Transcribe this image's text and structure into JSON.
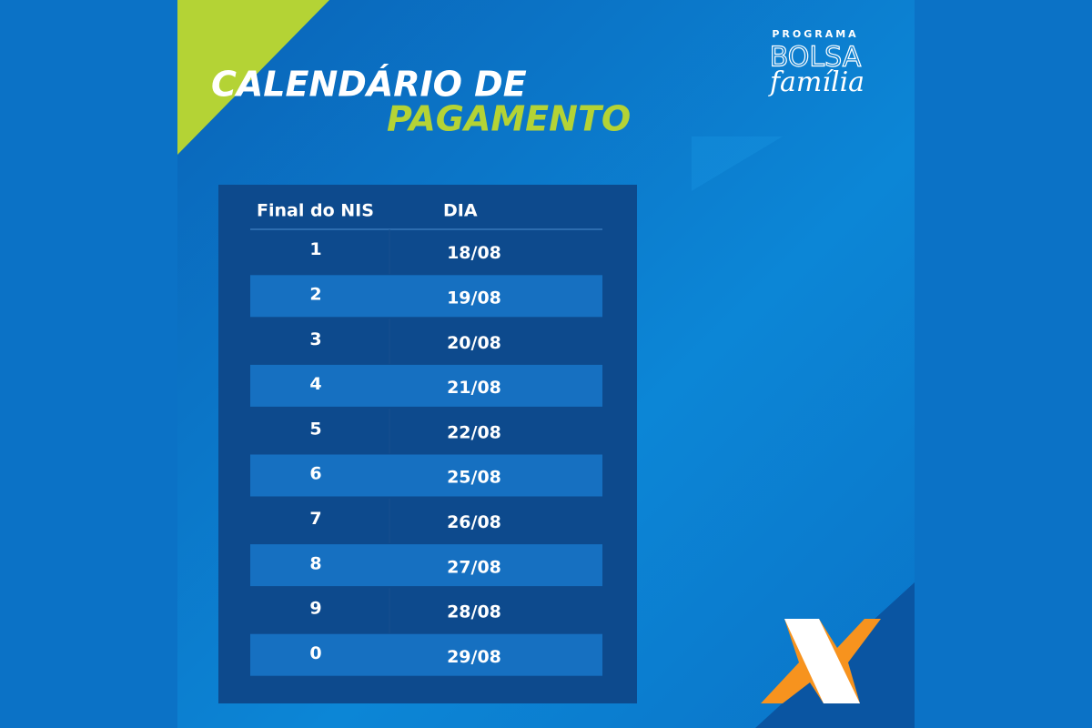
{
  "header": {
    "title_line1": "CALENDÁRIO DE",
    "title_line2": "PAGAMENTO"
  },
  "logo": {
    "top": "PROGRAMA",
    "middle": "BOLSA",
    "bottom": "família"
  },
  "table": {
    "columns": [
      "Final do NIS",
      "DIA"
    ],
    "rows": [
      [
        "1",
        "18/08"
      ],
      [
        "2",
        "19/08"
      ],
      [
        "3",
        "20/08"
      ],
      [
        "4",
        "21/08"
      ],
      [
        "5",
        "22/08"
      ],
      [
        "6",
        "25/08"
      ],
      [
        "7",
        "26/08"
      ],
      [
        "8",
        "27/08"
      ],
      [
        "9",
        "28/08"
      ],
      [
        "0",
        "29/08"
      ]
    ]
  }
}
